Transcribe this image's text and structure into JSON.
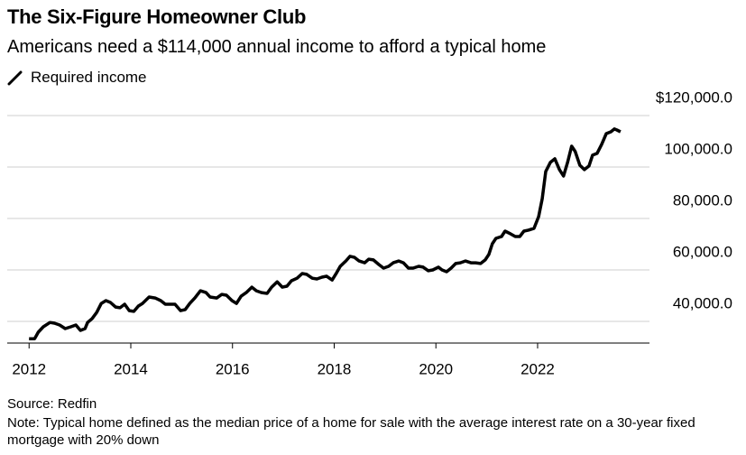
{
  "chart_data": {
    "type": "line",
    "title": "The Six-Figure Homeowner Club",
    "subtitle": "Americans need a $114,000 annual income to afford a typical home",
    "source": "Source: Redfin",
    "note": "Note: Typical home defined as the median price of a home for sale with the average interest rate on a 30-year fixed mortgage with 20% down",
    "x": [
      2012.0,
      2012.11,
      2012.18,
      2012.28,
      2012.41,
      2012.5,
      2012.6,
      2012.71,
      2012.82,
      2012.92,
      2013.01,
      2013.1,
      2013.15,
      2013.24,
      2013.33,
      2013.42,
      2013.51,
      2013.6,
      2013.7,
      2013.79,
      2013.88,
      2013.97,
      2014.06,
      2014.15,
      2014.23,
      2014.36,
      2014.48,
      2014.59,
      2014.68,
      2014.77,
      2014.87,
      2014.98,
      2015.07,
      2015.16,
      2015.26,
      2015.37,
      2015.48,
      2015.56,
      2015.69,
      2015.79,
      2015.88,
      2015.99,
      2016.08,
      2016.17,
      2016.27,
      2016.38,
      2016.47,
      2016.57,
      2016.68,
      2016.77,
      2016.88,
      2016.98,
      2017.07,
      2017.16,
      2017.27,
      2017.37,
      2017.46,
      2017.57,
      2017.66,
      2017.76,
      2017.85,
      2017.96,
      2018.05,
      2018.12,
      2018.23,
      2018.31,
      2018.4,
      2018.49,
      2018.6,
      2018.68,
      2018.77,
      2018.88,
      2018.97,
      2019.07,
      2019.16,
      2019.27,
      2019.36,
      2019.46,
      2019.55,
      2019.66,
      2019.75,
      2019.85,
      2019.94,
      2020.05,
      2020.12,
      2020.21,
      2020.3,
      2020.39,
      2020.48,
      2020.58,
      2020.69,
      2020.78,
      2020.88,
      2020.97,
      2021.04,
      2021.11,
      2021.18,
      2021.29,
      2021.36,
      2021.47,
      2021.56,
      2021.65,
      2021.73,
      2021.82,
      2021.93,
      2022.02,
      2022.09,
      2022.16,
      2022.25,
      2022.34,
      2022.43,
      2022.51,
      2022.59,
      2022.67,
      2022.74,
      2022.83,
      2022.92,
      2023.01,
      2023.08,
      2023.17,
      2023.26,
      2023.35,
      2023.44,
      2023.51,
      2023.56,
      2023.63
    ],
    "series": [
      {
        "name": "Required income",
        "color": "#000000",
        "values": [
          33300,
          33300,
          35800,
          37900,
          39600,
          39300,
          38600,
          37200,
          37900,
          38600,
          36500,
          37200,
          39600,
          41100,
          43500,
          47000,
          48100,
          47400,
          45600,
          45300,
          46700,
          44200,
          43900,
          46000,
          47000,
          49500,
          49100,
          48100,
          46700,
          46700,
          46700,
          44200,
          44600,
          47000,
          49100,
          51900,
          51200,
          49500,
          49100,
          50500,
          50200,
          48100,
          47000,
          49800,
          51200,
          53300,
          51900,
          51200,
          50900,
          53300,
          55400,
          53300,
          53700,
          55800,
          56800,
          58600,
          58300,
          56800,
          56500,
          57200,
          57600,
          56100,
          59000,
          61400,
          63500,
          65300,
          64900,
          63500,
          62800,
          64200,
          63900,
          62100,
          60700,
          61400,
          62800,
          63500,
          62800,
          60700,
          60700,
          61400,
          61100,
          59700,
          60000,
          61100,
          60000,
          59300,
          60700,
          62500,
          62800,
          63500,
          62800,
          62800,
          62500,
          63900,
          66000,
          70200,
          72300,
          73000,
          75100,
          74000,
          73000,
          73000,
          75100,
          75500,
          76200,
          80700,
          87700,
          98300,
          101800,
          103200,
          99000,
          96500,
          101800,
          108100,
          106000,
          100700,
          99000,
          100400,
          104600,
          105300,
          108800,
          113000,
          113700,
          114800,
          114400,
          113700
        ]
      }
    ],
    "xlim": [
      2011.57,
      2024.2
    ],
    "xticks": [
      2012,
      2014,
      2016,
      2018,
      2020,
      2022
    ],
    "ylim": [
      31600,
      120000
    ],
    "yticks": [
      {
        "value": 40000,
        "label": "40,000.0"
      },
      {
        "value": 60000,
        "label": "60,000.0"
      },
      {
        "value": 80000,
        "label": "80,000.0"
      },
      {
        "value": 100000,
        "label": "100,000.0"
      },
      {
        "value": 120000,
        "label": "$120,000.0"
      }
    ],
    "grid": true
  }
}
